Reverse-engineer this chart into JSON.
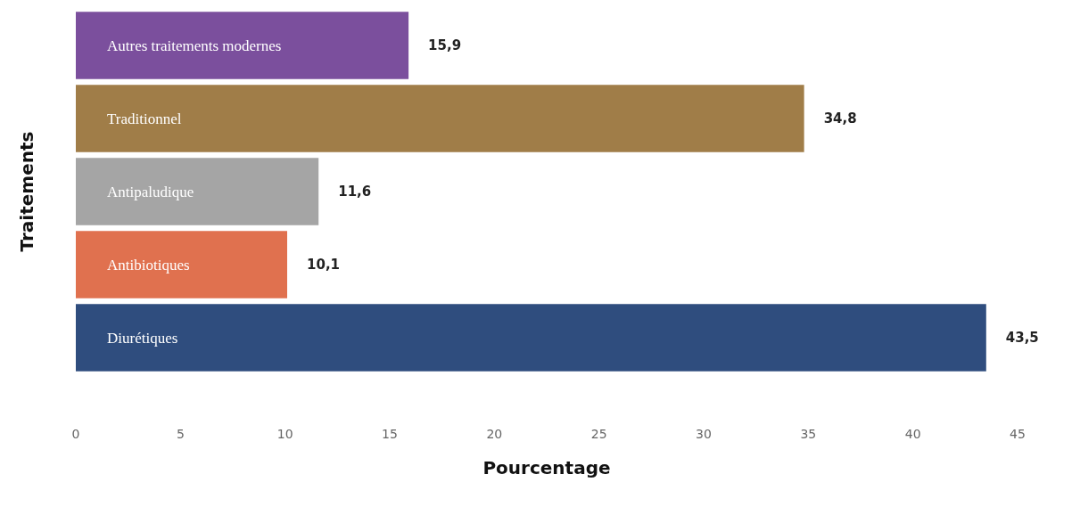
{
  "chart_data": {
    "type": "bar",
    "orientation": "horizontal",
    "xlabel": "Pourcentage",
    "ylabel": "Traitements",
    "categories": [
      "Autres traitements modernes",
      "Traditionnel",
      "Antipaludique",
      "Antibiotiques",
      "Diurétiques"
    ],
    "values": [
      15.9,
      34.8,
      11.6,
      10.1,
      43.5
    ],
    "colors": [
      "#7b4f9d",
      "#a07d48",
      "#a5a5a5",
      "#e0714f",
      "#2f4d7e"
    ],
    "value_labels": [
      "15,9",
      "34,8",
      "11,6",
      "10,1",
      "43,5"
    ],
    "xlim": [
      0,
      45
    ],
    "xticks": [
      0,
      5,
      10,
      15,
      20,
      25,
      30,
      35,
      40,
      45
    ],
    "grid": false
  }
}
